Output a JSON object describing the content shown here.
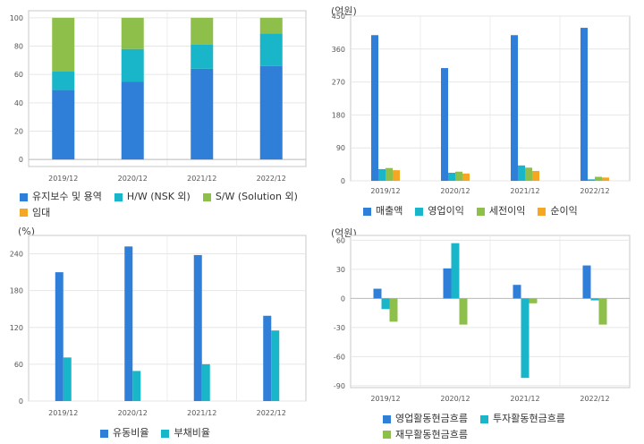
{
  "chart_data": [
    {
      "type": "bar",
      "stacked": true,
      "unit": "",
      "categories": [
        "2019/12",
        "2020/12",
        "2021/12",
        "2022/12"
      ],
      "series": [
        {
          "name": "유지보수 및 용역",
          "values": [
            49,
            55,
            64,
            66
          ],
          "color": "#2f7ed8"
        },
        {
          "name": "H/W (NSK 외)",
          "values": [
            13,
            23,
            17,
            23
          ],
          "color": "#19b5c8"
        },
        {
          "name": "S/W (Solution 외)",
          "values": [
            38,
            22,
            19,
            11
          ],
          "color": "#8dbf4a"
        },
        {
          "name": "임대",
          "values": [
            0,
            0,
            0,
            0
          ],
          "color": "#f5a623"
        }
      ],
      "yticks": [
        0,
        20,
        40,
        60,
        80,
        100
      ],
      "ylim": [
        -5,
        105
      ],
      "grid": true,
      "legend": "bottom"
    },
    {
      "type": "bar",
      "unit": "(억원)",
      "categories": [
        "2019/12",
        "2020/12",
        "2021/12",
        "2022/12"
      ],
      "series": [
        {
          "name": "매출액",
          "values": [
            398,
            308,
            398,
            418
          ],
          "color": "#2f7ed8"
        },
        {
          "name": "영업이익",
          "values": [
            32,
            22,
            42,
            4
          ],
          "color": "#19b5c8"
        },
        {
          "name": "세전이익",
          "values": [
            35,
            25,
            36,
            11
          ],
          "color": "#8dbf4a"
        },
        {
          "name": "순이익",
          "values": [
            29,
            20,
            27,
            9
          ],
          "color": "#f5a623"
        }
      ],
      "yticks": [
        0,
        90,
        180,
        270,
        360,
        450
      ],
      "ylim": [
        0,
        450
      ],
      "grid": true,
      "legend": "bottom"
    },
    {
      "type": "bar",
      "unit": "(%)",
      "categories": [
        "2019/12",
        "2020/12",
        "2021/12",
        "2022/12"
      ],
      "series": [
        {
          "name": "유동비율",
          "values": [
            210,
            252,
            238,
            139
          ],
          "color": "#2f7ed8"
        },
        {
          "name": "부채비율",
          "values": [
            71,
            49,
            60,
            115
          ],
          "color": "#19b5c8"
        }
      ],
      "yticks": [
        0,
        60,
        120,
        180,
        240
      ],
      "ylim": [
        0,
        270
      ],
      "grid": true,
      "legend": "bottom"
    },
    {
      "type": "bar",
      "unit": "(억원)",
      "categories": [
        "2019/12",
        "2020/12",
        "2021/12",
        "2022/12"
      ],
      "series": [
        {
          "name": "영업활동현금흐름",
          "values": [
            10,
            31,
            14,
            34
          ],
          "color": "#2f7ed8"
        },
        {
          "name": "투자활동현금흐름",
          "values": [
            -11,
            57,
            -82,
            -2
          ],
          "color": "#19b5c8"
        },
        {
          "name": "재무활동현금흐름",
          "values": [
            -24,
            -27,
            -5,
            -27
          ],
          "color": "#8dbf4a"
        }
      ],
      "yticks": [
        -90,
        -60,
        -30,
        0,
        30,
        60
      ],
      "ylim": [
        -92,
        65
      ],
      "grid": true,
      "legend": "bottom"
    }
  ]
}
